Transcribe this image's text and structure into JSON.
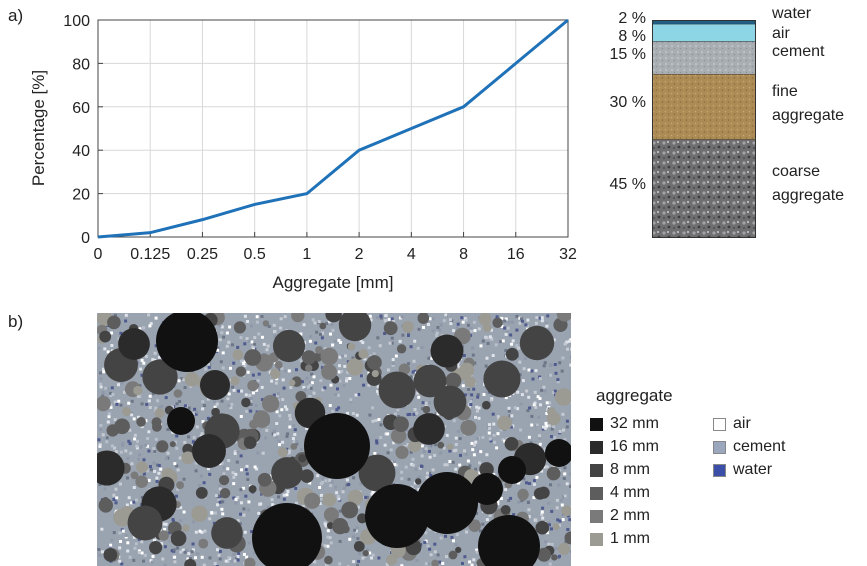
{
  "panel_a_label": "a)",
  "panel_b_label": "b)",
  "chart_data": {
    "type": "line",
    "xlabel": "Aggregate [mm]",
    "ylabel": "Percentage [%]",
    "categories": [
      "0",
      "0.125",
      "0.25",
      "0.5",
      "1",
      "2",
      "4",
      "8",
      "16",
      "32"
    ],
    "values": [
      0,
      2,
      8,
      15,
      20,
      40,
      50,
      60,
      80,
      100
    ],
    "ylim": [
      0,
      100
    ],
    "yticks": [
      "0",
      "20",
      "40",
      "60",
      "80",
      "100"
    ],
    "grid": true,
    "line_color": "#1f72b8"
  },
  "composition": {
    "layers": [
      {
        "percent": "2 %",
        "label": "water",
        "value": 2,
        "color": "#1f5f84"
      },
      {
        "percent": "8 %",
        "label": "air",
        "value": 8,
        "color": "#8dd6e6"
      },
      {
        "percent": "15 %",
        "label": "cement",
        "value": 15,
        "color": "#aeb3b9"
      },
      {
        "percent": "30 %",
        "label": "fine aggregate",
        "value": 30,
        "color": "#b0905d"
      },
      {
        "percent": "45 %",
        "label": "coarse aggregate",
        "value": 45,
        "color": "#7a7a7c"
      }
    ],
    "fine_line1": "fine",
    "fine_line2": "aggregate",
    "coarse_line1": "coarse",
    "coarse_line2": "aggregate"
  },
  "legend": {
    "title": "aggregate",
    "aggregates": [
      {
        "label": "32 mm",
        "color": "#111111"
      },
      {
        "label": "16 mm",
        "color": "#2b2b2b"
      },
      {
        "label": "8 mm",
        "color": "#444444"
      },
      {
        "label": "4 mm",
        "color": "#5d5d5d"
      },
      {
        "label": "2 mm",
        "color": "#7a7a7a"
      },
      {
        "label": "1 mm",
        "color": "#9b9b93"
      }
    ],
    "phases": [
      {
        "label": "air",
        "color": "#ffffff"
      },
      {
        "label": "cement",
        "color": "#9aa7bd"
      },
      {
        "label": "water",
        "color": "#3b4fa8"
      }
    ]
  }
}
